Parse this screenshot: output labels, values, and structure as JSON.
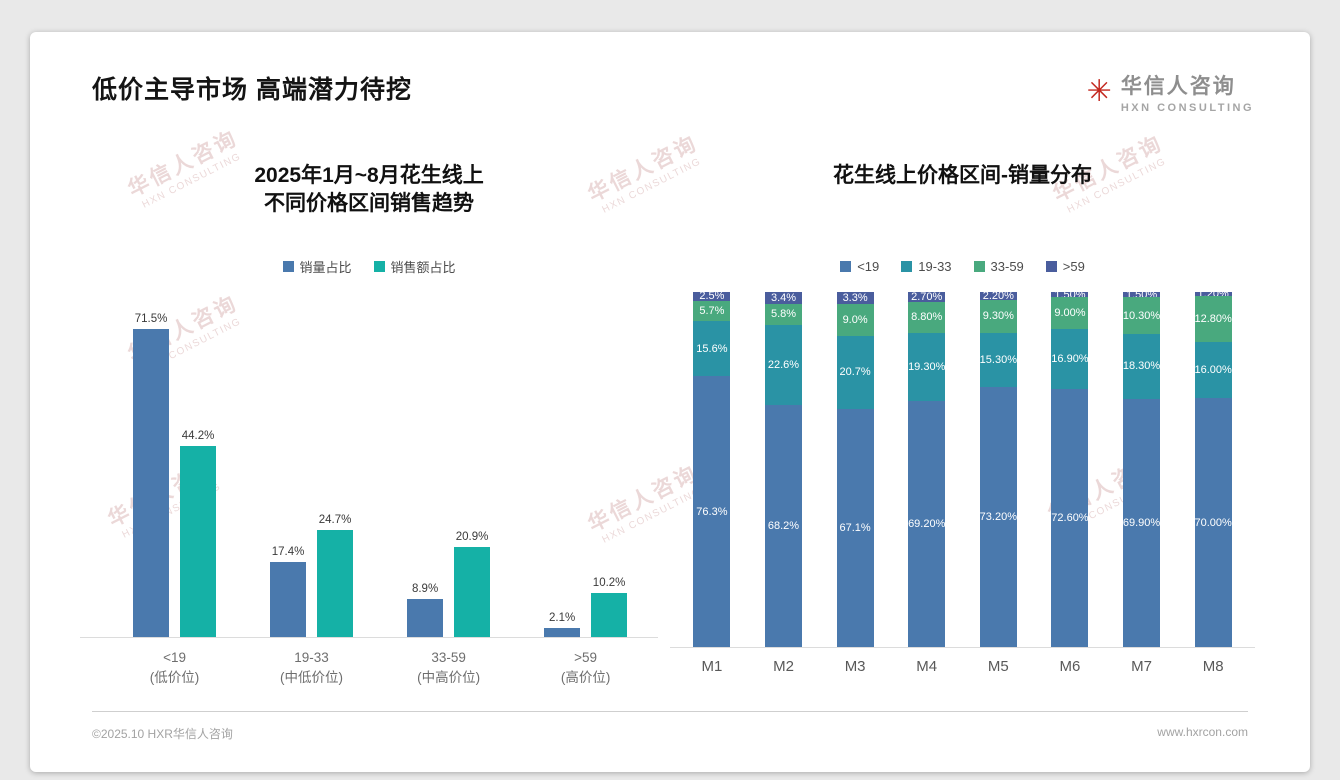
{
  "slide": {
    "title": "低价主导市场 高端潜力待挖",
    "logo": {
      "name": "华信人咨询",
      "sub": "HXN CONSULTING"
    },
    "footer": {
      "left": "©2025.10 HXR华信人咨询",
      "right": "www.hxrcon.com"
    },
    "watermark": {
      "line1": "华信人咨询",
      "line2": "HXN CONSULTING"
    }
  },
  "chart_data": [
    {
      "type": "bar",
      "title": "2025年1月~8月花生线上\n不同价格区间销售趋势",
      "categories": [
        {
          "label": "<19",
          "sub": "(低价位)"
        },
        {
          "label": "19-33",
          "sub": "(中低价位)"
        },
        {
          "label": "33-59",
          "sub": "(中高价位)"
        },
        {
          "label": ">59",
          "sub": "(高价位)"
        }
      ],
      "series": [
        {
          "name": "销量占比",
          "color": "#4a79ad",
          "values": [
            71.5,
            17.4,
            8.9,
            2.1
          ]
        },
        {
          "name": "销售额占比",
          "color": "#15b1a6",
          "values": [
            44.2,
            24.7,
            20.9,
            10.2
          ]
        }
      ],
      "xlabel": "",
      "ylabel": "",
      "ylim": [
        0,
        80
      ],
      "grid": false,
      "legend_position": "top"
    },
    {
      "type": "bar",
      "stacked": true,
      "title": "花生线上价格区间-销量分布",
      "categories": [
        "M1",
        "M2",
        "M3",
        "M4",
        "M5",
        "M6",
        "M7",
        "M8"
      ],
      "series": [
        {
          "name": "<19",
          "color": "#4a79ad",
          "values": [
            76.3,
            68.2,
            67.1,
            69.2,
            73.2,
            72.6,
            69.9,
            70.0
          ],
          "labels": [
            "76.3%",
            "68.2%",
            "67.1%",
            "69.20%",
            "73.20%",
            "72.60%",
            "69.90%",
            "70.00%"
          ]
        },
        {
          "name": "19-33",
          "color": "#2a93a5",
          "values": [
            15.6,
            22.6,
            20.7,
            19.3,
            15.3,
            16.9,
            18.3,
            16.0
          ],
          "labels": [
            "15.6%",
            "22.6%",
            "20.7%",
            "19.30%",
            "15.30%",
            "16.90%",
            "18.30%",
            "16.00%"
          ]
        },
        {
          "name": "33-59",
          "color": "#49a97e",
          "values": [
            5.7,
            5.8,
            9.0,
            8.8,
            9.3,
            9.0,
            10.3,
            12.8
          ],
          "labels": [
            "5.7%",
            "5.8%",
            "9.0%",
            "8.80%",
            "9.30%",
            "9.00%",
            "10.30%",
            "12.80%"
          ]
        },
        {
          "name": ">59",
          "color": "#4a5d9d",
          "values": [
            2.5,
            3.4,
            3.3,
            2.7,
            2.2,
            1.5,
            1.5,
            1.2
          ],
          "labels": [
            "2.5%",
            "3.4%",
            "3.3%",
            "2.70%",
            "2.20%",
            "1.50%",
            "1.50%",
            "1.20%"
          ]
        }
      ],
      "xlabel": "",
      "ylabel": "",
      "ylim": [
        0,
        100
      ],
      "grid": false,
      "legend_position": "top"
    }
  ]
}
